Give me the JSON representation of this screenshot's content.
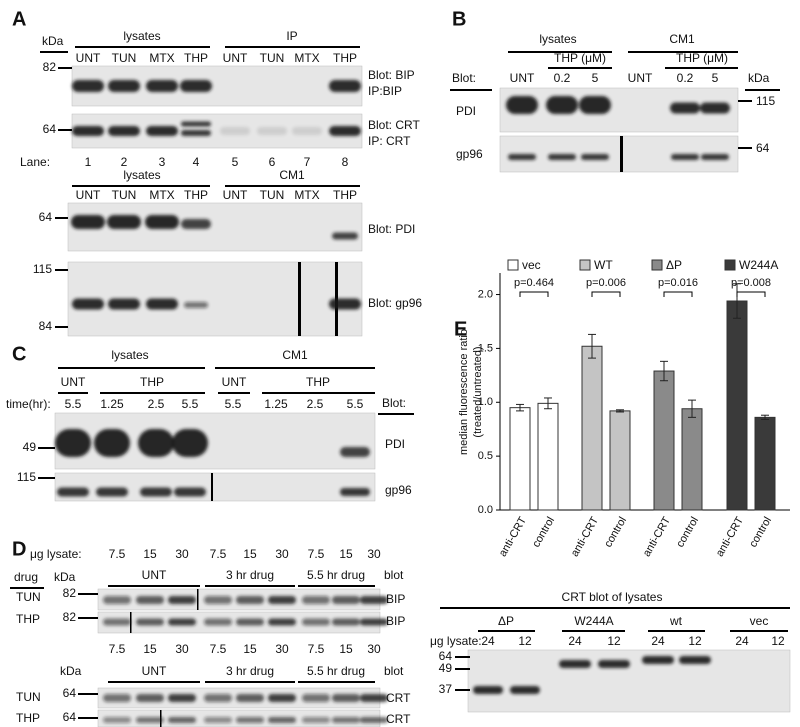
{
  "panel_a": {
    "letter": "A",
    "kda": "kDa",
    "groups": [
      "lysates",
      "IP"
    ],
    "lanes": [
      "UNT",
      "TUN",
      "MTX",
      "THP",
      "UNT",
      "TUN",
      "MTX",
      "THP"
    ],
    "markers": [
      "82",
      "64"
    ],
    "blot1": [
      "Blot: BIP",
      "IP:BIP"
    ],
    "blot2": [
      "Blot: CRT",
      "IP: CRT"
    ],
    "lane_label": "Lane:",
    "lane_numbers": [
      "1",
      "2",
      "3",
      "4",
      "5",
      "6",
      "7",
      "8"
    ],
    "groups2": [
      "lysates",
      "CM1"
    ],
    "lanes2": [
      "UNT",
      "TUN",
      "MTX",
      "THP",
      "UNT",
      "TUN",
      "MTX",
      "THP"
    ],
    "markers2": [
      "64",
      "115",
      "84"
    ],
    "blot3": "Blot: PDI",
    "blot4": "Blot: gp96"
  },
  "panel_b": {
    "letter": "B",
    "groups": [
      "lysates",
      "CM1"
    ],
    "treatment": [
      "THP (μM)",
      "THP (μM)"
    ],
    "blot": "Blot:",
    "lanes": [
      "UNT",
      "0.2",
      "5",
      "UNT",
      "0.2",
      "5"
    ],
    "kda": "kDa",
    "rows": [
      "PDI",
      "gp96"
    ],
    "markers": [
      "115",
      "64"
    ]
  },
  "panel_c": {
    "letter": "C",
    "groups": [
      "lysates",
      "CM1"
    ],
    "treatment": [
      "UNT",
      "THP",
      "UNT",
      "THP"
    ],
    "time_label": "time(hr):",
    "times": [
      "5.5",
      "1.25",
      "2.5",
      "5.5",
      "5.5",
      "1.25",
      "2.5",
      "5.5"
    ],
    "blot": "Blot:",
    "rows": [
      "PDI",
      "gp96"
    ],
    "markers": [
      "49",
      "115"
    ]
  },
  "panel_d": {
    "letter": "D",
    "ug_label": "μg lysate:",
    "drug": "drug",
    "kda": "kDa",
    "amounts": [
      "7.5",
      "15",
      "30",
      "7.5",
      "15",
      "30",
      "7.5",
      "15",
      "30"
    ],
    "groups": [
      "UNT",
      "3 hr drug",
      "5.5 hr drug"
    ],
    "blot": "blot",
    "rows": [
      "TUN",
      "THP"
    ],
    "markers": [
      "82",
      "82"
    ],
    "bands": [
      "BIP",
      "BIP"
    ],
    "amounts2": [
      "7.5",
      "15",
      "30",
      "7.5",
      "15",
      "30",
      "7.5",
      "15",
      "30"
    ],
    "kda2": "kDa",
    "groups2": [
      "UNT",
      "3 hr drug",
      "5.5 hr drug"
    ],
    "blot2": "blot",
    "rows2": [
      "TUN",
      "THP"
    ],
    "markers2": [
      "64",
      "64"
    ],
    "bands2": [
      "CRT",
      "CRT"
    ]
  },
  "panel_e_blot": {
    "title": "CRT blot of lysates",
    "groups": [
      "ΔP",
      "W244A",
      "wt",
      "vec"
    ],
    "ug_label": "μg lysate:",
    "amounts": [
      "24",
      "12",
      "24",
      "12",
      "24",
      "12",
      "24",
      "12"
    ],
    "markers": [
      "64",
      "49",
      "37"
    ]
  },
  "chart_data": {
    "type": "bar",
    "letter": "E",
    "ylabel": [
      "median fluorescence ratio",
      "(treated/untreated)"
    ],
    "categories": [
      "anti-CRT",
      "control"
    ],
    "series": [
      {
        "name": "vec",
        "color": "#ffffff",
        "values": [
          0.95,
          0.99
        ],
        "errors": [
          0.03,
          0.05
        ]
      },
      {
        "name": "WT",
        "color": "#c4c4c4",
        "values": [
          1.52,
          0.92
        ],
        "errors": [
          0.11,
          0.01
        ]
      },
      {
        "name": "ΔP",
        "color": "#8a8a8a",
        "values": [
          1.29,
          0.94
        ],
        "errors": [
          0.09,
          0.08
        ]
      },
      {
        "name": "W244A",
        "color": "#3a3a3a",
        "values": [
          1.94,
          0.86
        ],
        "errors": [
          0.16,
          0.02
        ]
      }
    ],
    "annotations": [
      "p=0.464",
      "p=0.006",
      "p=0.016",
      "p=0.008"
    ],
    "ylim": [
      0,
      2.2
    ],
    "yticks": [
      {
        "value": 0,
        "label": "0.0"
      },
      {
        "value": 0.5,
        "label": "0.5"
      },
      {
        "value": 1,
        "label": "1.0"
      },
      {
        "value": 1.5,
        "label": "1.5"
      },
      {
        "value": 2,
        "label": "2.0"
      }
    ]
  }
}
